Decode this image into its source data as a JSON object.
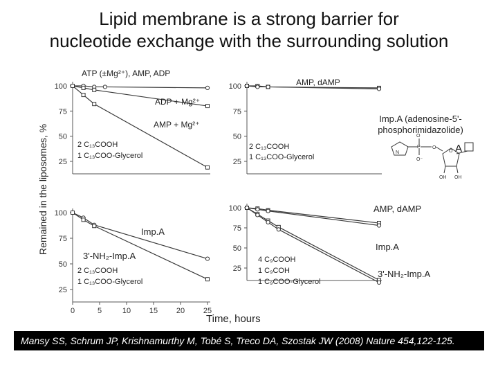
{
  "title_line1": "Lipid membrane is a strong barrier for",
  "title_line2": "nucleotide exchange with the surrounding solution",
  "ylabel": "Remained in the liposomes, %",
  "xlabel": "Time, hours",
  "citation": {
    "authors": "Mansy SS, Schrum JP, Krishnamurthy M, Tobé S, Treco DA, Szostak JW",
    "rest": " (2008) Nature 454,122-125."
  },
  "structure_label": "A",
  "chart_data": [
    {
      "id": "A",
      "type": "line",
      "xlim": [
        0,
        25
      ],
      "ylim": [
        0,
        100
      ],
      "yticks": [
        25,
        50,
        75,
        100
      ],
      "xticks": [],
      "annotations": [
        "ATP (±Mg²⁺), AMP, ADP",
        "ADP + Mg²⁺",
        "AMP + Mg²⁺",
        "2 C₁₃COOH",
        "1 C₁₃COO-Glycerol"
      ],
      "series": [
        {
          "marker": "circle",
          "x": [
            0,
            2,
            4,
            6,
            25
          ],
          "y": [
            100,
            100,
            99,
            99,
            98
          ]
        },
        {
          "marker": "square",
          "x": [
            0,
            2,
            4,
            25
          ],
          "y": [
            100,
            98,
            96,
            80
          ]
        },
        {
          "marker": "square",
          "x": [
            0,
            2,
            4,
            25
          ],
          "y": [
            100,
            91,
            82,
            19
          ]
        }
      ]
    },
    {
      "id": "B",
      "type": "line",
      "xlim": [
        0,
        25
      ],
      "ylim": [
        0,
        100
      ],
      "yticks": [
        25,
        50,
        75,
        100
      ],
      "xticks": [],
      "annotations": [
        "AMP, dAMP",
        "2 C₁₃COOH",
        "1 C₁₃COO-Glycerol"
      ],
      "series": [
        {
          "marker": "square",
          "x": [
            0,
            2,
            4,
            25
          ],
          "y": [
            100,
            100,
            99,
            98
          ]
        },
        {
          "marker": "circle",
          "x": [
            0,
            2,
            4,
            25
          ],
          "y": [
            100,
            99,
            99,
            97
          ]
        }
      ]
    },
    {
      "id": "C",
      "type": "line",
      "xlim": [
        0,
        25
      ],
      "ylim": [
        0,
        100
      ],
      "yticks": [
        25,
        50,
        75,
        100
      ],
      "xticks": [
        0,
        5,
        10,
        15,
        20,
        25
      ],
      "annotations": [
        "Imp.A",
        "3'-NH₂-Imp.A",
        "2 C₁₃COOH",
        "1 C₁₃COO-Glycerol"
      ],
      "series": [
        {
          "marker": "circle",
          "x": [
            0,
            2,
            4,
            25
          ],
          "y": [
            100,
            95,
            88,
            55
          ]
        },
        {
          "marker": "square",
          "x": [
            0,
            2,
            4,
            25
          ],
          "y": [
            100,
            93,
            87,
            35
          ]
        }
      ]
    },
    {
      "id": "D",
      "type": "line",
      "xlim": [
        0,
        25
      ],
      "ylim": [
        0,
        100
      ],
      "yticks": [
        25,
        50,
        75,
        100
      ],
      "xticks": [],
      "annotations": [
        "AMP, dAMP",
        "Imp.A",
        "3'-NH₂-Imp.A",
        "4 C₉COOH",
        "1 C₉COH",
        "1 C₉COO-Glycerol"
      ],
      "series": [
        {
          "marker": "square",
          "x": [
            0,
            2,
            4,
            25
          ],
          "y": [
            100,
            99,
            97,
            81
          ]
        },
        {
          "marker": "circle",
          "x": [
            0,
            2,
            4,
            25
          ],
          "y": [
            100,
            98,
            96,
            78
          ]
        },
        {
          "marker": "square",
          "x": [
            0,
            2,
            4,
            6,
            25
          ],
          "y": [
            100,
            92,
            84,
            76,
            10
          ]
        },
        {
          "marker": "circle",
          "x": [
            0,
            2,
            4,
            6,
            25
          ],
          "y": [
            100,
            91,
            82,
            73,
            7
          ]
        }
      ]
    }
  ],
  "imp_a_caption_1": "Imp.A (adenosine-5'-",
  "imp_a_caption_2": "phosphorimidazolide)"
}
